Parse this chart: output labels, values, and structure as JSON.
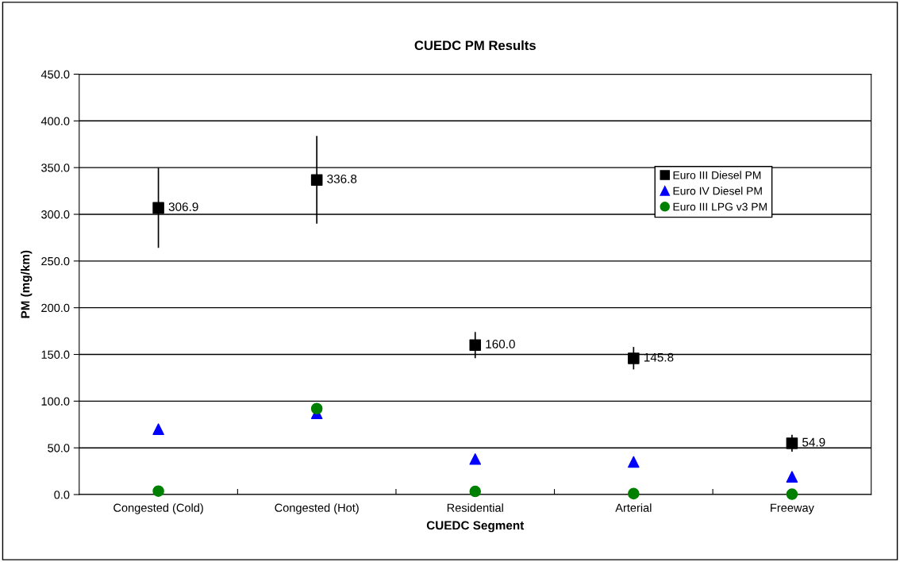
{
  "chart_data": {
    "type": "scatter",
    "title": "CUEDC PM Results",
    "xlabel": "CUEDC Segment",
    "ylabel": "PM (mg/km)",
    "categories": [
      "Congested (Cold)",
      "Congested (Hot)",
      "Residential",
      "Arterial",
      "Freeway"
    ],
    "series": [
      {
        "name": "Euro III Diesel PM",
        "color": "#000000",
        "marker": "square",
        "values": [
          306.9,
          336.8,
          160.0,
          145.8,
          54.9
        ],
        "value_labels": [
          "306.9",
          "336.8",
          "160.0",
          "145.8",
          "54.9"
        ],
        "errors": [
          [
            264,
            350
          ],
          [
            290,
            384
          ],
          [
            146,
            174
          ],
          [
            134,
            158
          ],
          [
            46,
            64
          ]
        ]
      },
      {
        "name": "Euro IV Diesel PM",
        "color": "#0000ff",
        "marker": "triangle",
        "values": [
          70,
          87,
          38,
          35,
          19
        ]
      },
      {
        "name": "Euro III LPG v3 PM",
        "color": "#008000",
        "marker": "circle",
        "values": [
          3.7,
          92,
          3.4,
          1.0,
          0.4
        ]
      }
    ],
    "ylim": [
      0,
      450
    ],
    "yticks": [
      {
        "value": 0,
        "label": "0.0"
      },
      {
        "value": 50,
        "label": "50.0"
      },
      {
        "value": 100,
        "label": "100.0"
      },
      {
        "value": 150,
        "label": "150.0"
      },
      {
        "value": 200,
        "label": "200.0"
      },
      {
        "value": 250,
        "label": "250.0"
      },
      {
        "value": 300,
        "label": "300.0"
      },
      {
        "value": 350,
        "label": "350.0"
      },
      {
        "value": 400,
        "label": "400.0"
      },
      {
        "value": 450,
        "label": "450.0"
      }
    ],
    "grid": "y",
    "legend": "right"
  }
}
